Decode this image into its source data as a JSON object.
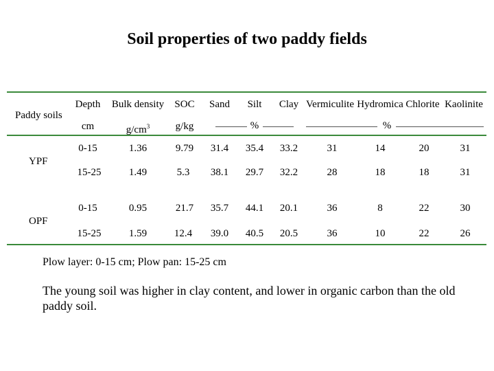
{
  "title": "Soil properties of two paddy fields",
  "table": {
    "rowheader": "Paddy soils",
    "headers": [
      "Depth",
      "Bulk density",
      "SOC",
      "Sand",
      "Silt",
      "Clay",
      "Vermiculite",
      "Hydromica",
      "Chlorite",
      "Kaolinite"
    ],
    "units": {
      "depth": "cm",
      "bulk_density": "g/cm",
      "bulk_density_exp": "3",
      "soc": "g/kg",
      "texture": "%",
      "minerals": "%"
    },
    "groups": [
      {
        "name": "YPF",
        "rows": [
          [
            "0-15",
            "1.36",
            "9.79",
            "31.4",
            "35.4",
            "33.2",
            "31",
            "14",
            "20",
            "31"
          ],
          [
            "15-25",
            "1.49",
            "5.3",
            "38.1",
            "29.7",
            "32.2",
            "28",
            "18",
            "18",
            "31"
          ]
        ]
      },
      {
        "name": "OPF",
        "rows": [
          [
            "0-15",
            "0.95",
            "21.7",
            "35.7",
            "44.1",
            "20.1",
            "36",
            "8",
            "22",
            "30"
          ],
          [
            "15-25",
            "1.59",
            "12.4",
            "39.0",
            "40.5",
            "20.5",
            "36",
            "10",
            "22",
            "26"
          ]
        ]
      }
    ]
  },
  "notes": {
    "layers": "Plow layer: 0-15 cm; Plow pan: 15-25 cm",
    "summary": "The young soil was higher in clay content, and lower in organic carbon than the old paddy soil."
  },
  "colors": {
    "rule": "#3a8a3a"
  }
}
